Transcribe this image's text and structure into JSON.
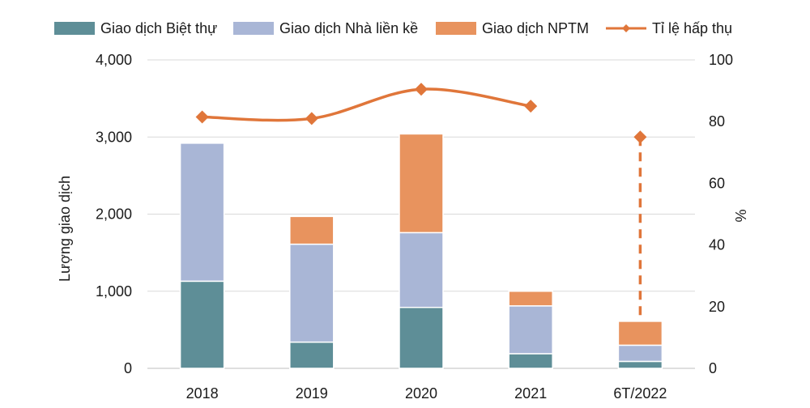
{
  "chart_data": {
    "type": "bar",
    "stacked": true,
    "categories": [
      "2018",
      "2019",
      "2020",
      "2021",
      "6T/2022"
    ],
    "series": [
      {
        "name": "Giao dịch Biệt thự",
        "type": "bar",
        "axis": "left",
        "color": "#5e8e97",
        "values": [
          1130,
          340,
          790,
          190,
          90
        ]
      },
      {
        "name": "Giao dịch Nhà liền kề",
        "type": "bar",
        "axis": "left",
        "color": "#a9b6d6",
        "values": [
          1790,
          1270,
          970,
          620,
          210
        ]
      },
      {
        "name": "Giao dịch NPTM",
        "type": "bar",
        "axis": "left",
        "color": "#e8935e",
        "values": [
          0,
          360,
          1280,
          190,
          310
        ]
      },
      {
        "name": "Tỉ lệ hấp thụ",
        "type": "line",
        "axis": "right",
        "color": "#e0763a",
        "values": [
          81.5,
          81,
          90.5,
          85,
          75
        ],
        "dashed_last_segment": true
      }
    ],
    "ylabel": "Lượng giao dịch",
    "y2label": "%",
    "ylim": [
      0,
      4000
    ],
    "y2lim": [
      0,
      100
    ],
    "yticks": [
      "0",
      "1,000",
      "2,000",
      "3,000",
      "4,000"
    ],
    "y2ticks": [
      "0",
      "20",
      "40",
      "60",
      "80",
      "100"
    ],
    "grid": true,
    "legend_position": "top"
  }
}
